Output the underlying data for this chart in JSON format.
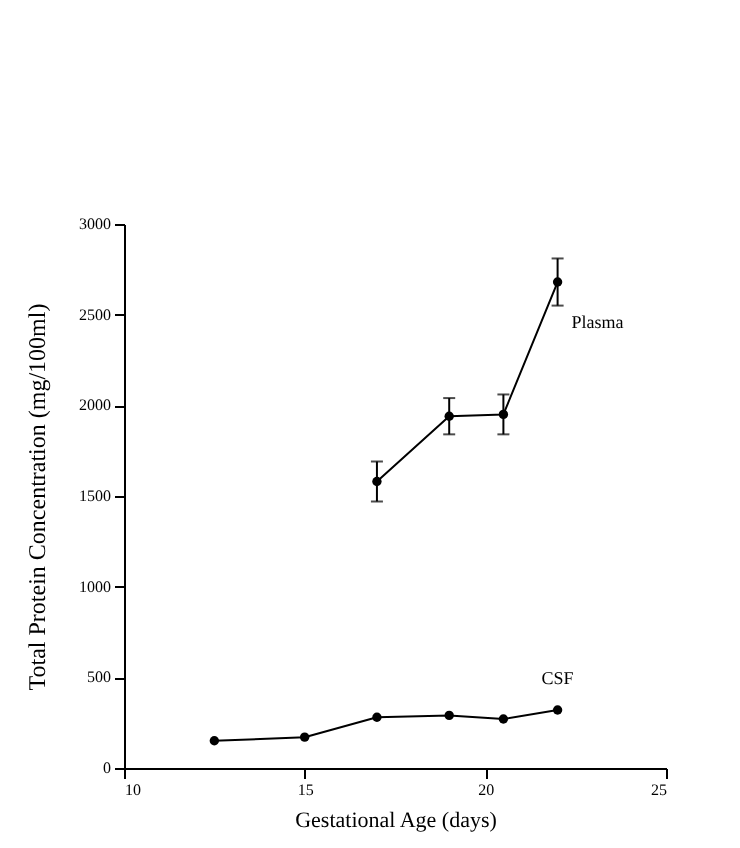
{
  "chart_data": {
    "type": "line",
    "xlabel": "Gestational Age (days)",
    "ylabel": "Total Protein Concentration (mg/100ml)",
    "xlim": [
      10,
      25
    ],
    "xticks": [
      10,
      15,
      20,
      25
    ],
    "ylim": [
      0,
      3000
    ],
    "yticks": [
      0,
      500,
      1000,
      1500,
      2000,
      2500,
      3000
    ],
    "grid": false,
    "marker": "circle",
    "line_style": "solid",
    "series": [
      {
        "color": "#000000",
        "x": [
          17,
          19,
          20.5,
          22
        ],
        "values": [
          1580,
          1940,
          1950,
          2680
        ],
        "errors": [
          110,
          100,
          110,
          130
        ]
      },
      {
        "color": "#000000",
        "x": [
          12.5,
          15,
          17,
          19,
          20.5,
          22
        ],
        "values": [
          150,
          170,
          280,
          290,
          270,
          320
        ]
      }
    ],
    "annotations": [
      "Plasma",
      "CSF"
    ]
  }
}
